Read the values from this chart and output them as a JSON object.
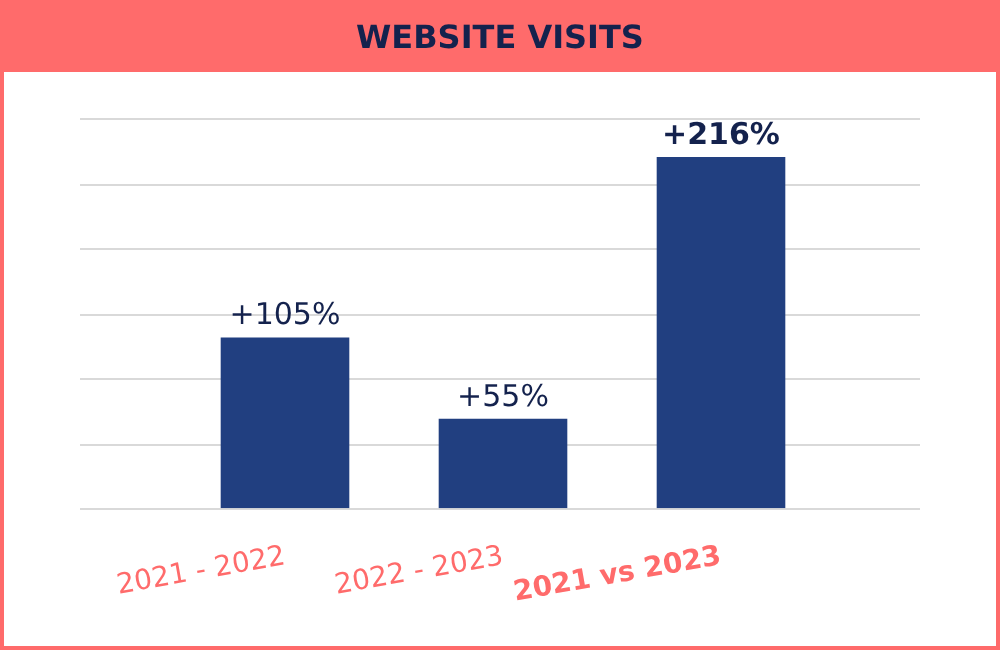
{
  "chart_data": {
    "type": "bar",
    "title": "WEBSITE VISITS",
    "categories": [
      "2021 - 2022",
      "2022 - 2023",
      "2021 vs 2023"
    ],
    "values": [
      105,
      55,
      216
    ],
    "value_labels": [
      "+105%",
      "+55%",
      "+216%"
    ],
    "color": "#213f80",
    "ylim": [
      0,
      240
    ],
    "yticks": [
      {
        "value": 0,
        "label": null
      },
      {
        "value": 40,
        "label": null
      },
      {
        "value": 80,
        "label": null
      },
      {
        "value": 120,
        "label": null
      },
      {
        "value": 160,
        "label": null
      },
      {
        "value": 200,
        "label": null
      },
      {
        "value": 240,
        "label": null
      }
    ],
    "grid": "y",
    "tick_labels": "x",
    "legend": false
  }
}
